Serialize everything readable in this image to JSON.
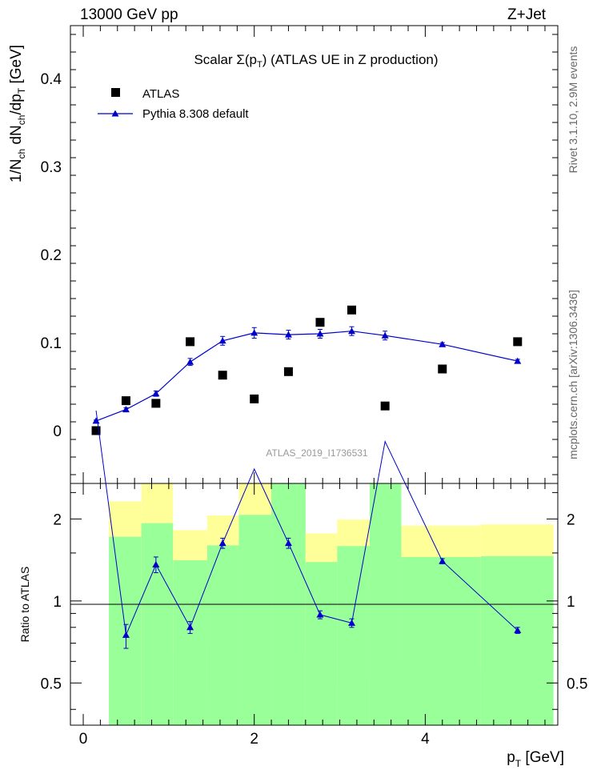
{
  "header": {
    "left": "13000 GeV pp",
    "right": "Z+Jet"
  },
  "side_labels": {
    "events": "Rivet 3.1.10,  2.9M events",
    "source": "mcplots.cern.ch [arXiv:1306.3436]"
  },
  "chart_data": [
    {
      "type": "scatter",
      "title_main": "Scalar ",
      "title_sigma": "Σ(p",
      "title_sub": "T",
      "title_rest": ") (ATLAS UE in Z production)",
      "watermark": "ATLAS_2019_I1736531",
      "ylabel": "1/N_ch dN_ch/dp_T [GeV]",
      "ylim": [
        -0.06,
        0.46
      ],
      "yticks": [
        "0",
        "0.1",
        "0.2",
        "0.3",
        "0.4"
      ],
      "legend": {
        "position": "top-left",
        "entries": [
          "ATLAS",
          "Pythia 8.308 default"
        ]
      },
      "series": [
        {
          "name": "ATLAS",
          "color": "#000000",
          "x": [
            0.15,
            0.5,
            0.85,
            1.25,
            1.63,
            2.0,
            2.4,
            2.77,
            3.14,
            3.53,
            4.2,
            5.08
          ],
          "y": [
            0.0,
            0.034,
            0.031,
            0.101,
            0.063,
            0.036,
            0.067,
            0.123,
            0.137,
            0.028,
            0.07,
            0.101
          ]
        },
        {
          "name": "Pythia 8.308 default",
          "color": "#0000cc",
          "x": [
            0.15,
            0.5,
            0.85,
            1.25,
            1.63,
            2.0,
            2.4,
            2.77,
            3.14,
            3.53,
            4.2,
            5.08
          ],
          "y": [
            0.011,
            0.024,
            0.042,
            0.078,
            0.102,
            0.111,
            0.109,
            0.11,
            0.113,
            0.108,
            0.098,
            0.079
          ],
          "err": [
            0.001,
            0.002,
            0.003,
            0.004,
            0.005,
            0.006,
            0.005,
            0.005,
            0.005,
            0.005,
            0.002,
            0.002
          ]
        }
      ]
    },
    {
      "type": "line",
      "ylabel": "Ratio to ATLAS",
      "xlabel": "p_T [GeV]",
      "xlim": [
        -0.15,
        5.55
      ],
      "ylim": [
        0.35,
        2.7
      ],
      "yscale": "log",
      "xticks": [
        "0",
        "2",
        "4"
      ],
      "yticks": [
        "0.5",
        "1",
        "2"
      ],
      "bands": {
        "edges": [
          0.3,
          0.68,
          1.05,
          1.45,
          1.82,
          2.2,
          2.6,
          2.97,
          3.35,
          3.72,
          4.65,
          5.5
        ],
        "green_low": [
          0.2,
          0.2,
          0.2,
          0.2,
          0.2,
          0.2,
          0.2,
          0.2,
          0.2,
          0.2,
          0.2
        ],
        "green_high": [
          1.72,
          1.93,
          1.41,
          1.6,
          2.07,
          2.8,
          1.39,
          1.59,
          2.8,
          1.45,
          1.46
        ],
        "yellow_low": [
          0.2,
          0.2,
          0.66,
          0.46,
          0.2,
          0.2,
          0.66,
          0.51,
          0.2,
          0.59,
          0.57
        ],
        "yellow_high": [
          2.32,
          2.8,
          1.82,
          2.06,
          2.8,
          2.8,
          1.77,
          1.99,
          2.8,
          1.89,
          1.91
        ],
        "green_color": "#99ff99",
        "yellow_color": "#ffff99"
      },
      "series": [
        {
          "name": "Pythia 8.308 default",
          "color": "#0000cc",
          "x": [
            0.15,
            0.5,
            0.85,
            1.25,
            1.63,
            2.0,
            2.4,
            2.77,
            3.14,
            3.53,
            4.2,
            5.08
          ],
          "y": [
            5.0,
            0.75,
            1.36,
            0.8,
            1.63,
            3.05,
            1.63,
            0.89,
            0.83,
            3.85,
            1.4,
            0.78
          ],
          "err_low": [
            0,
            0.08,
            0.09,
            0.04,
            0.07,
            0,
            0.07,
            0.03,
            0.03,
            0,
            0.03,
            0.02
          ],
          "err_high": [
            0,
            0.07,
            0.09,
            0.04,
            0.07,
            0,
            0.07,
            0.03,
            0.03,
            0,
            0.03,
            0.02
          ]
        }
      ]
    }
  ]
}
